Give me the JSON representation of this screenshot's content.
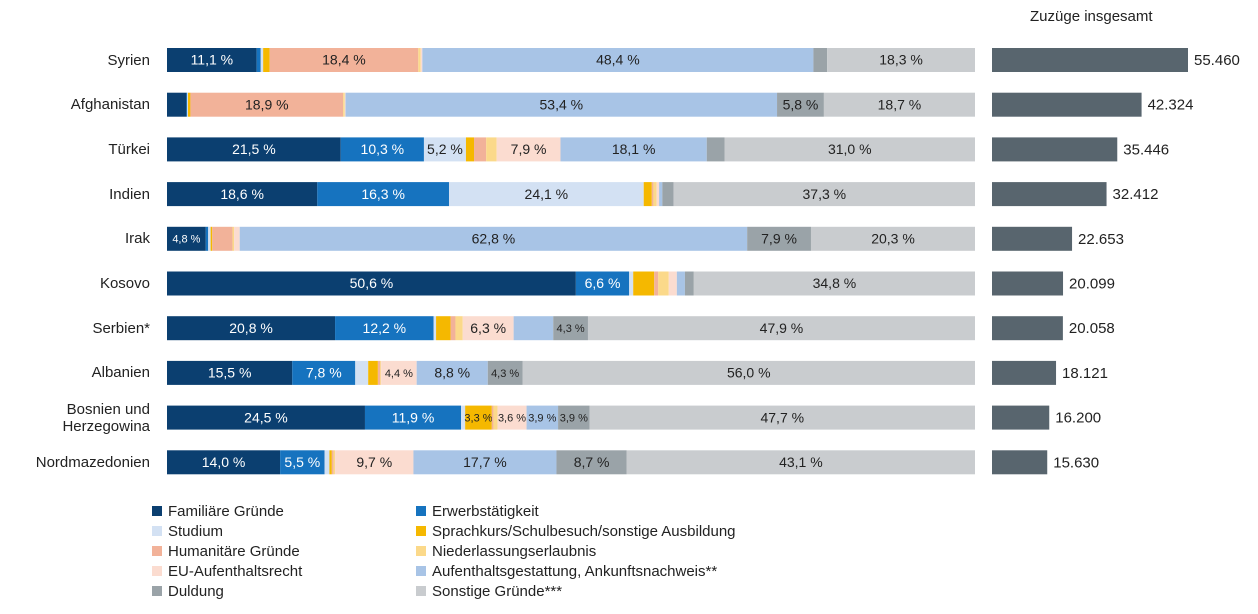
{
  "chart_data": [
    {
      "type": "bar",
      "orientation": "horizontal",
      "stacked": true,
      "xlim": [
        0,
        100
      ],
      "categories": [
        "Syrien",
        "Afghanistan",
        "Türkei",
        "Indien",
        "Irak",
        "Kosovo",
        "Serbien*",
        "Albanien",
        "Bosnien und Herzegowina",
        "Nordmazedonien"
      ],
      "series": [
        {
          "name": "Familiäre Gründe",
          "color": "#0b3f70",
          "values": [
            11.1,
            2.4,
            21.5,
            18.6,
            4.8,
            50.6,
            20.8,
            15.5,
            24.5,
            14.0
          ],
          "value_labels": [
            "11,1 %",
            null,
            "21,5 %",
            "18,6 %",
            "4,8 %",
            "50,6 %",
            "20,8 %",
            "15,5 %",
            "24,5 %",
            "14,0 %"
          ]
        },
        {
          "name": "Erwerbstätigkeit",
          "color": "#1673bf",
          "values": [
            0.5,
            0.1,
            10.3,
            16.3,
            0.3,
            6.6,
            12.2,
            7.8,
            11.9,
            5.5
          ],
          "value_labels": [
            null,
            null,
            "10,3 %",
            "16,3 %",
            null,
            "6,6 %",
            "12,2 %",
            "7,8 %",
            "11,9 %",
            "5,5 %"
          ]
        },
        {
          "name": "Studium",
          "color": "#d3e1f3",
          "values": [
            0.3,
            0.1,
            5.2,
            24.1,
            0.3,
            0.5,
            0.3,
            1.6,
            0.5,
            0.6
          ],
          "value_labels": [
            null,
            null,
            "5,2 %",
            "24,1 %",
            null,
            null,
            null,
            null,
            null,
            null
          ]
        },
        {
          "name": "Sprachkurs/Schulbesuch/sonstige Ausbildung",
          "color": "#f5b800",
          "values": [
            0.8,
            0.3,
            1.0,
            1.0,
            0.2,
            2.6,
            1.8,
            1.2,
            3.3,
            0.3
          ],
          "value_labels": [
            null,
            null,
            null,
            null,
            null,
            null,
            null,
            null,
            "3,3 %",
            null
          ]
        },
        {
          "name": "Humanitäre Gründe",
          "color": "#f2b299",
          "values": [
            18.4,
            18.9,
            1.5,
            0.2,
            2.5,
            0.5,
            0.6,
            0.3,
            0.2,
            0.2
          ],
          "value_labels": [
            "18,4 %",
            "18,9 %",
            null,
            null,
            null,
            null,
            null,
            null,
            null,
            null
          ]
        },
        {
          "name": "Niederlassungserlaubnis",
          "color": "#fbd98a",
          "values": [
            0.3,
            0.2,
            1.3,
            0.4,
            0.2,
            1.3,
            0.9,
            0.1,
            0.5,
            0.2
          ],
          "value_labels": [
            null,
            null,
            null,
            null,
            null,
            null,
            null,
            null,
            null,
            null
          ]
        },
        {
          "name": "EU-Aufenthaltsrecht",
          "color": "#fbdcd0",
          "values": [
            0.2,
            0.1,
            7.9,
            0.3,
            0.7,
            1.0,
            6.3,
            4.4,
            3.6,
            9.7
          ],
          "value_labels": [
            null,
            null,
            "7,9 %",
            null,
            null,
            null,
            "6,3 %",
            "4,4 %",
            "3,6 %",
            "9,7 %"
          ]
        },
        {
          "name": "Aufenthaltsgestattung, Ankunftsnachweis**",
          "color": "#a8c4e6",
          "values": [
            48.4,
            53.4,
            18.1,
            0.4,
            62.8,
            1.0,
            4.9,
            8.8,
            3.9,
            17.7
          ],
          "value_labels": [
            "48,4 %",
            "53,4 %",
            "18,1 %",
            null,
            "62,8 %",
            null,
            null,
            "8,8 %",
            "3,9 %",
            "17,7 %"
          ]
        },
        {
          "name": "Duldung",
          "color": "#9aa3a8",
          "values": [
            1.7,
            5.8,
            2.2,
            1.4,
            7.9,
            1.1,
            4.3,
            4.3,
            3.9,
            8.7
          ],
          "value_labels": [
            null,
            "5,8 %",
            null,
            null,
            "7,9 %",
            null,
            "4,3 %",
            "4,3 %",
            "3,9 %",
            "8,7 %"
          ]
        },
        {
          "name": "Sonstige Gründe***",
          "color": "#c9cccf",
          "values": [
            18.3,
            18.7,
            31.0,
            37.3,
            20.3,
            34.8,
            47.9,
            56.0,
            47.7,
            43.1
          ],
          "value_labels": [
            "18,3 %",
            "18,7 %",
            "31,0 %",
            "37,3 %",
            "20,3 %",
            "34,8 %",
            "47,9 %",
            "56,0 %",
            "47,7 %",
            "43,1 %"
          ]
        }
      ]
    },
    {
      "type": "bar",
      "orientation": "horizontal",
      "title": "Zuzüge insgesamt",
      "color": "#58656e",
      "values": [
        55460,
        42324,
        35446,
        32412,
        22653,
        20099,
        20058,
        18121,
        16200,
        15630
      ],
      "value_labels": [
        "55.460",
        "42.324",
        "35.446",
        "32.412",
        "22.653",
        "20.099",
        "20.058",
        "18.121",
        "16.200",
        "15.630"
      ]
    }
  ]
}
